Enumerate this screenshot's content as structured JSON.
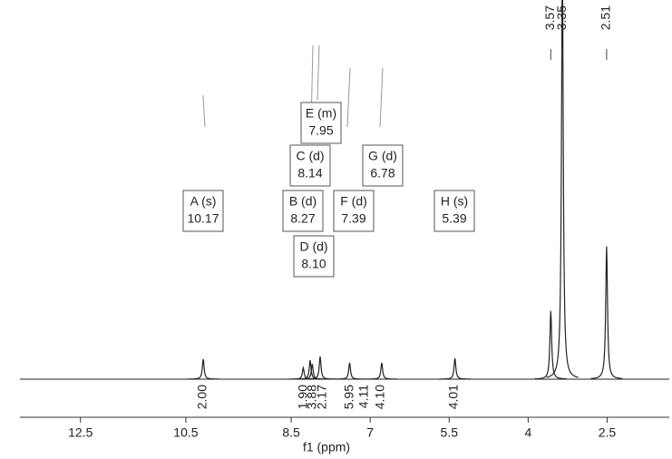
{
  "chart_data": {
    "type": "spectrum",
    "xlabel": "f1 (ppm)",
    "x": [
      10.17,
      8.27,
      8.14,
      8.1,
      7.95,
      7.39,
      6.78,
      5.39,
      3.57,
      3.35,
      2.51
    ],
    "values": [
      5.3,
      3,
      5,
      4,
      6,
      4.3,
      4.3,
      5.5,
      18,
      110,
      35
    ],
    "color": "#222222",
    "xlim": [
      13.65,
      1.32
    ],
    "ylim": [
      0,
      100
    ],
    "xticks": [
      12.5,
      10.5,
      8.5,
      7.0,
      5.5,
      4.0,
      2.5
    ],
    "peak_labels": [
      3.57,
      3.35,
      2.51
    ],
    "multiplets": [
      {
        "label": "A (s)",
        "shift": "10.17"
      },
      {
        "label": "B (d)",
        "shift": "8.27"
      },
      {
        "label": "C (d)",
        "shift": "8.14"
      },
      {
        "label": "D (d)",
        "shift": "8.10"
      },
      {
        "label": "E (m)",
        "shift": "7.95"
      },
      {
        "label": "F (d)",
        "shift": "7.39"
      },
      {
        "label": "G (d)",
        "shift": "6.78"
      },
      {
        "label": "H (s)",
        "shift": "5.39"
      }
    ],
    "integrals": [
      "2.00",
      "1.90",
      "3.88",
      "2.17",
      "5.95",
      "4.11",
      "4.10",
      "4.01"
    ]
  }
}
